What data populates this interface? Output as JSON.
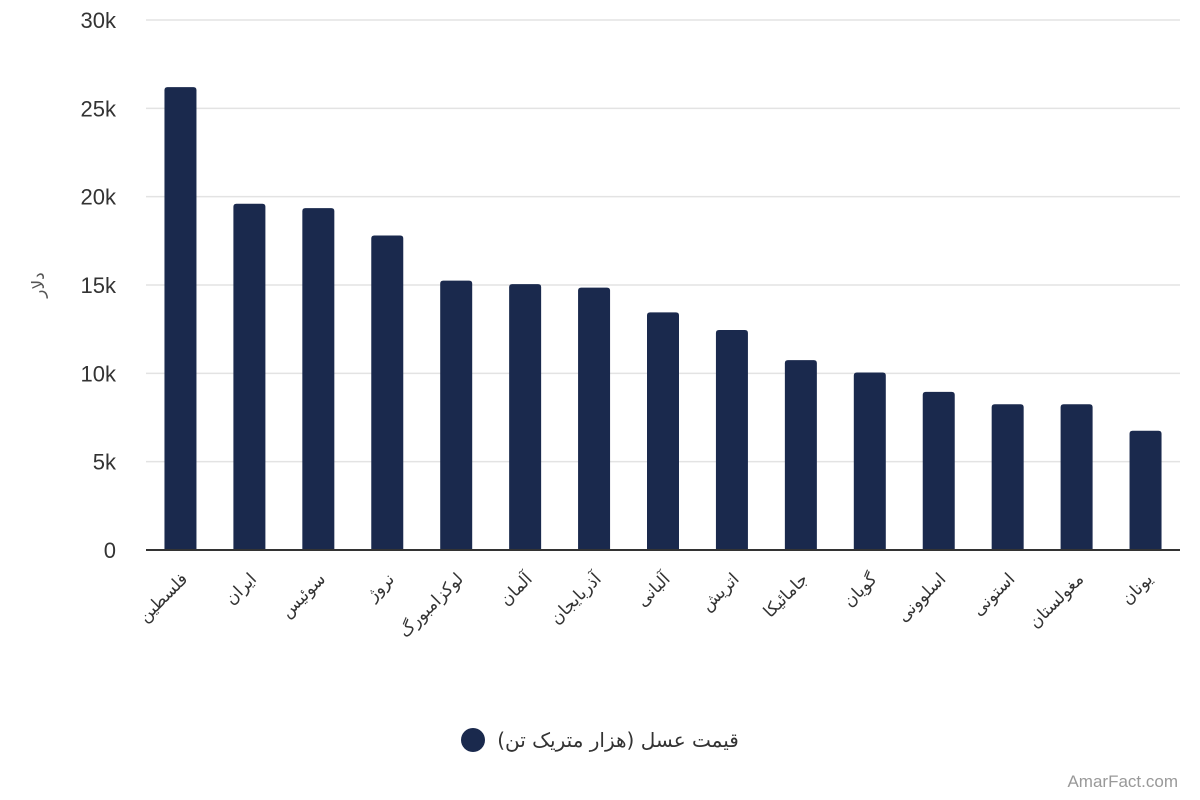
{
  "chart_data": {
    "type": "bar",
    "ylabel": "دلار",
    "xlabel": "",
    "ylim": [
      0,
      30000
    ],
    "y_ticks": [
      {
        "value": 0,
        "label": "0"
      },
      {
        "value": 5000,
        "label": "5k"
      },
      {
        "value": 10000,
        "label": "10k"
      },
      {
        "value": 15000,
        "label": "15k"
      },
      {
        "value": 20000,
        "label": "20k"
      },
      {
        "value": 25000,
        "label": "25k"
      },
      {
        "value": 30000,
        "label": "30k"
      }
    ],
    "grid": true,
    "legend_position": "bottom-center",
    "categories": [
      "فلسطین",
      "ایران",
      "سوئیس",
      "نروژ",
      "لوکزامبورگ",
      "آلمان",
      "آذربایجان",
      "آلبانی",
      "اتریش",
      "جامائیکا",
      "گویان",
      "اسلوونی",
      "استونی",
      "مغولستان",
      "یونان"
    ],
    "series": [
      {
        "name": "قیمت عسل (هزار متریک تن)",
        "color": "#1a294d",
        "values": [
          26200,
          19600,
          19350,
          17800,
          15250,
          15050,
          14850,
          13450,
          12450,
          10750,
          10050,
          8950,
          8250,
          8250,
          6750
        ]
      }
    ]
  },
  "watermark": "AmarFact.com"
}
